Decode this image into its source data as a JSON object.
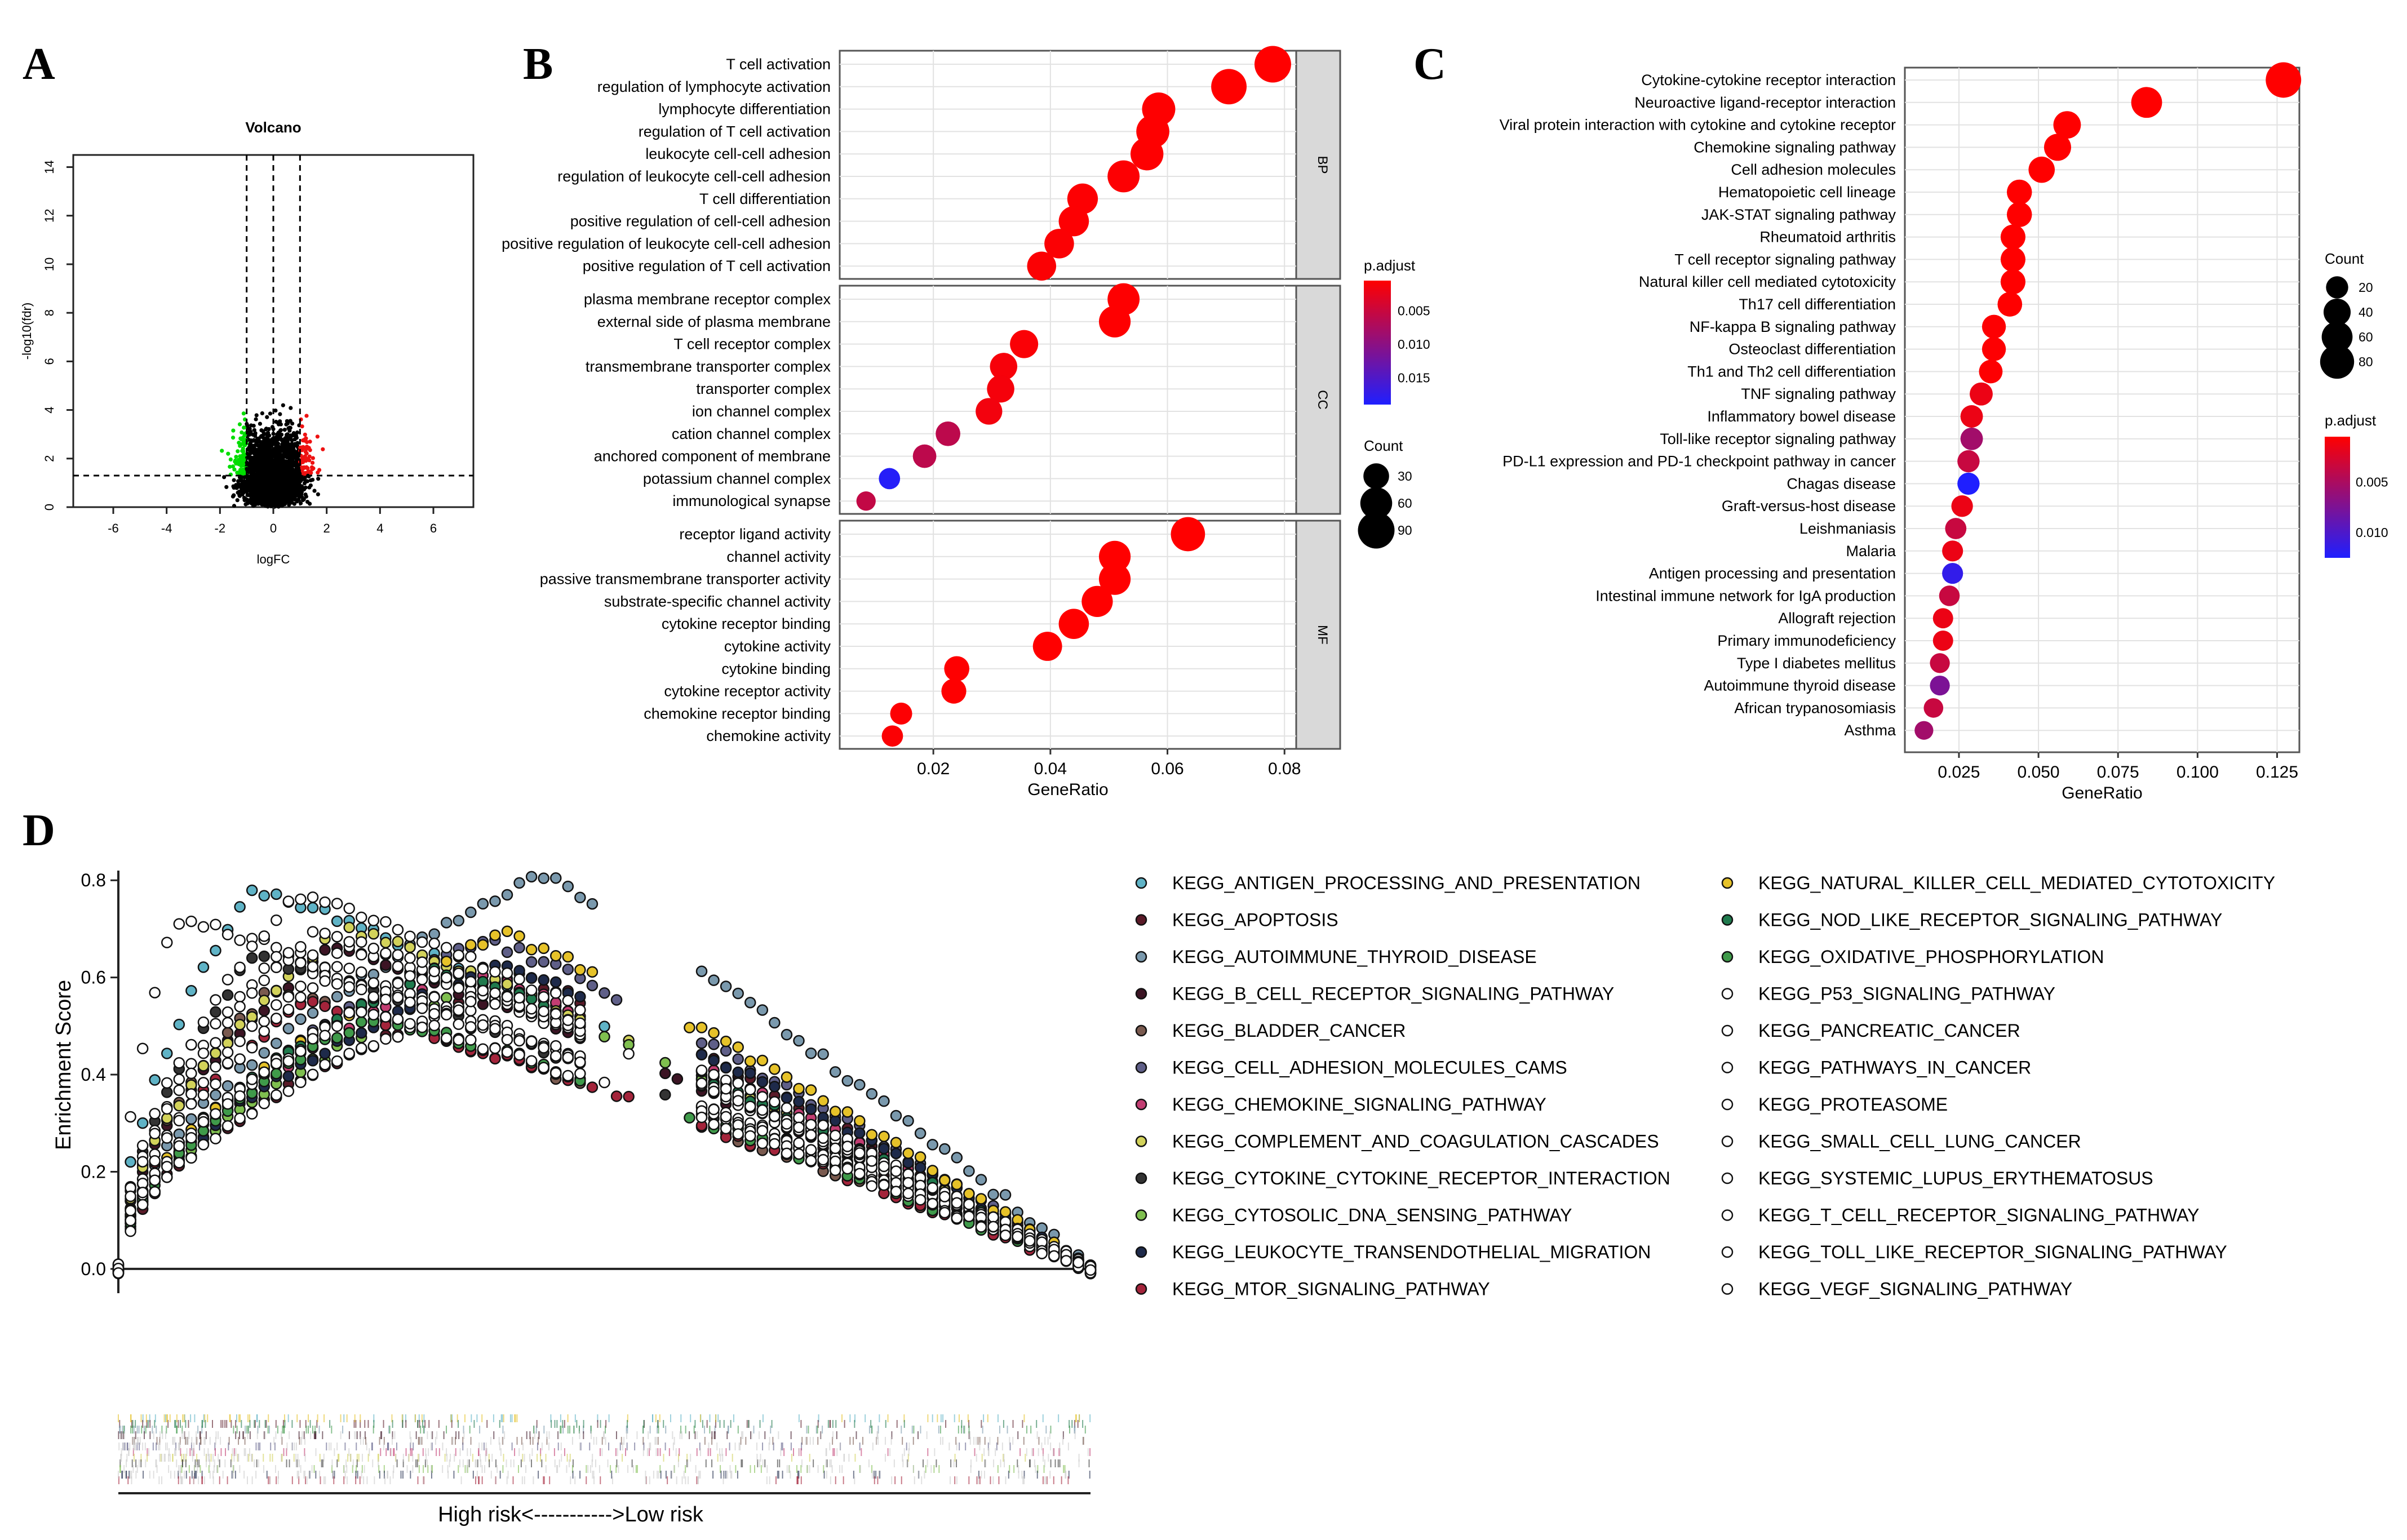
{
  "panel_letters": [
    "A",
    "B",
    "C",
    "D"
  ],
  "colors": {
    "volcano_down": "#00dd00",
    "volcano_up": "#ee1111",
    "volcano_ns": "#000000",
    "padj_low": "#ff0000",
    "padj_high": "#1f1fff",
    "panel_bg": "#ebebeb",
    "strip_bg": "#d9d9d9"
  },
  "chart_data": [
    {
      "panel": "A",
      "type": "scatter",
      "title": "Volcano",
      "xlabel": "logFC",
      "ylabel": "-log10(fdr)",
      "xlim": [
        -7.5,
        7.5
      ],
      "ylim": [
        0,
        14.5
      ],
      "xticks": [
        -6,
        -4,
        -2,
        0,
        2,
        4,
        6
      ],
      "yticks": [
        0,
        2,
        4,
        6,
        8,
        10,
        12,
        14
      ],
      "groups": [
        "down",
        "not significant",
        "up"
      ],
      "thresholds": {
        "logFC": 1,
        "fdr": 0.05
      }
    },
    {
      "panel": "B",
      "type": "scatter",
      "xlabel": "GeneRatio",
      "xlim": [
        0.004,
        0.082
      ],
      "xticks": [
        0.02,
        0.04,
        0.06,
        0.08
      ],
      "xtick_labels": [
        "0.02",
        "0.04",
        "0.06",
        "0.08"
      ],
      "color_legend": {
        "title": "p.adjust",
        "ticks": [
          "0.005",
          "0.010",
          "0.015"
        ],
        "range": [
          0.0005,
          0.019
        ]
      },
      "size_legend": {
        "title": "Count",
        "values": [
          30,
          60,
          90
        ]
      },
      "facets": [
        {
          "strip": "BP",
          "terms": [
            {
              "term": "T cell activation",
              "ratio": 0.078,
              "count": 90,
              "padj": 0.0005
            },
            {
              "term": "regulation of lymphocyte activation",
              "ratio": 0.0705,
              "count": 82,
              "padj": 0.0005
            },
            {
              "term": "lymphocyte differentiation",
              "ratio": 0.0585,
              "count": 68,
              "padj": 0.0006
            },
            {
              "term": "regulation of T cell activation",
              "ratio": 0.0575,
              "count": 67,
              "padj": 0.0006
            },
            {
              "term": "leukocyte cell-cell adhesion",
              "ratio": 0.0565,
              "count": 66,
              "padj": 0.0006
            },
            {
              "term": "regulation of leukocyte cell-cell adhesion",
              "ratio": 0.0525,
              "count": 61,
              "padj": 0.0007
            },
            {
              "term": "T cell differentiation",
              "ratio": 0.0455,
              "count": 53,
              "padj": 0.0007
            },
            {
              "term": "positive regulation of cell-cell adhesion",
              "ratio": 0.044,
              "count": 51,
              "padj": 0.0007
            },
            {
              "term": "positive regulation of leukocyte cell-cell adhesion",
              "ratio": 0.0415,
              "count": 48,
              "padj": 0.0008
            },
            {
              "term": "positive regulation of T cell activation",
              "ratio": 0.0385,
              "count": 45,
              "padj": 0.0008
            }
          ]
        },
        {
          "strip": "CC",
          "terms": [
            {
              "term": "plasma membrane receptor complex",
              "ratio": 0.0525,
              "count": 61,
              "padj": 0.0006
            },
            {
              "term": "external side of plasma membrane",
              "ratio": 0.051,
              "count": 59,
              "padj": 0.0006
            },
            {
              "term": "T cell receptor complex",
              "ratio": 0.0355,
              "count": 41,
              "padj": 0.0009
            },
            {
              "term": "transmembrane transporter complex",
              "ratio": 0.032,
              "count": 37,
              "padj": 0.0012
            },
            {
              "term": "transporter complex",
              "ratio": 0.0315,
              "count": 37,
              "padj": 0.0013
            },
            {
              "term": "ion channel complex",
              "ratio": 0.0295,
              "count": 34,
              "padj": 0.0015
            },
            {
              "term": "cation channel complex",
              "ratio": 0.0225,
              "count": 26,
              "padj": 0.006
            },
            {
              "term": "anchored component of membrane",
              "ratio": 0.0185,
              "count": 22,
              "padj": 0.006
            },
            {
              "term": "potassium channel complex",
              "ratio": 0.0125,
              "count": 15,
              "padj": 0.0185
            },
            {
              "term": "immunological synapse",
              "ratio": 0.0085,
              "count": 10,
              "padj": 0.0055
            }
          ]
        },
        {
          "strip": "MF",
          "terms": [
            {
              "term": "receptor ligand activity",
              "ratio": 0.0635,
              "count": 74,
              "padj": 0.0005
            },
            {
              "term": "channel activity",
              "ratio": 0.051,
              "count": 59,
              "padj": 0.0005
            },
            {
              "term": "passive transmembrane transporter activity",
              "ratio": 0.051,
              "count": 59,
              "padj": 0.0005
            },
            {
              "term": "substrate-specific channel activity",
              "ratio": 0.048,
              "count": 56,
              "padj": 0.0005
            },
            {
              "term": "cytokine receptor binding",
              "ratio": 0.044,
              "count": 51,
              "padj": 0.0005
            },
            {
              "term": "cytokine activity",
              "ratio": 0.0395,
              "count": 46,
              "padj": 0.0005
            },
            {
              "term": "cytokine binding",
              "ratio": 0.024,
              "count": 28,
              "padj": 0.0006
            },
            {
              "term": "cytokine receptor activity",
              "ratio": 0.0235,
              "count": 27,
              "padj": 0.0006
            },
            {
              "term": "chemokine receptor binding",
              "ratio": 0.0145,
              "count": 17,
              "padj": 0.0007
            },
            {
              "term": "chemokine activity",
              "ratio": 0.013,
              "count": 15,
              "padj": 0.0008
            }
          ]
        }
      ]
    },
    {
      "panel": "C",
      "type": "scatter",
      "xlabel": "GeneRatio",
      "xlim": [
        0.008,
        0.132
      ],
      "xticks": [
        0.025,
        0.05,
        0.075,
        0.1,
        0.125
      ],
      "xtick_labels": [
        "0.025",
        "0.050",
        "0.075",
        "0.100",
        "0.125"
      ],
      "color_legend": {
        "title": "p.adjust",
        "ticks": [
          "0.005",
          "0.010"
        ],
        "range": [
          0.0005,
          0.0125
        ]
      },
      "size_legend": {
        "title": "Count",
        "values": [
          20,
          40,
          60,
          80
        ]
      },
      "terms": [
        {
          "term": "Cytokine-cytokine receptor interaction",
          "ratio": 0.127,
          "count": 90,
          "padj": 0.0005
        },
        {
          "term": "Neuroactive ligand-receptor interaction",
          "ratio": 0.084,
          "count": 60,
          "padj": 0.0005
        },
        {
          "term": "Viral protein interaction with cytokine and cytokine receptor",
          "ratio": 0.059,
          "count": 42,
          "padj": 0.0005
        },
        {
          "term": "Chemokine signaling pathway",
          "ratio": 0.056,
          "count": 40,
          "padj": 0.0005
        },
        {
          "term": "Cell adhesion molecules",
          "ratio": 0.051,
          "count": 36,
          "padj": 0.0005
        },
        {
          "term": "Hematopoietic cell lineage",
          "ratio": 0.044,
          "count": 31,
          "padj": 0.0005
        },
        {
          "term": "JAK-STAT signaling pathway",
          "ratio": 0.044,
          "count": 31,
          "padj": 0.0005
        },
        {
          "term": "Rheumatoid arthritis",
          "ratio": 0.042,
          "count": 30,
          "padj": 0.0005
        },
        {
          "term": "T cell receptor signaling pathway",
          "ratio": 0.042,
          "count": 30,
          "padj": 0.0005
        },
        {
          "term": "Natural killer cell mediated cytotoxicity",
          "ratio": 0.042,
          "count": 30,
          "padj": 0.0005
        },
        {
          "term": "Th17 cell differentiation",
          "ratio": 0.041,
          "count": 29,
          "padj": 0.0005
        },
        {
          "term": "NF-kappa B signaling pathway",
          "ratio": 0.036,
          "count": 26,
          "padj": 0.0006
        },
        {
          "term": "Osteoclast differentiation",
          "ratio": 0.036,
          "count": 26,
          "padj": 0.0006
        },
        {
          "term": "Th1 and Th2 cell differentiation",
          "ratio": 0.035,
          "count": 25,
          "padj": 0.0006
        },
        {
          "term": "TNF signaling pathway",
          "ratio": 0.032,
          "count": 23,
          "padj": 0.0015
        },
        {
          "term": "Inflammatory bowel disease",
          "ratio": 0.029,
          "count": 21,
          "padj": 0.0015
        },
        {
          "term": "Toll-like receptor signaling pathway",
          "ratio": 0.029,
          "count": 21,
          "padj": 0.0055
        },
        {
          "term": "PD-L1 expression and PD-1 checkpoint pathway in cancer",
          "ratio": 0.028,
          "count": 20,
          "padj": 0.0035
        },
        {
          "term": "Chagas disease",
          "ratio": 0.028,
          "count": 20,
          "padj": 0.0125
        },
        {
          "term": "Graft-versus-host disease",
          "ratio": 0.026,
          "count": 18,
          "padj": 0.0015
        },
        {
          "term": "Leishmaniasis",
          "ratio": 0.024,
          "count": 17,
          "padj": 0.0035
        },
        {
          "term": "Malaria",
          "ratio": 0.023,
          "count": 16,
          "padj": 0.0015
        },
        {
          "term": "Antigen processing and presentation",
          "ratio": 0.023,
          "count": 16,
          "padj": 0.0115
        },
        {
          "term": "Intestinal immune network for IgA production",
          "ratio": 0.022,
          "count": 15,
          "padj": 0.0035
        },
        {
          "term": "Allograft rejection",
          "ratio": 0.02,
          "count": 14,
          "padj": 0.0015
        },
        {
          "term": "Primary immunodeficiency",
          "ratio": 0.02,
          "count": 14,
          "padj": 0.0015
        },
        {
          "term": "Type I diabetes mellitus",
          "ratio": 0.019,
          "count": 13,
          "padj": 0.0035
        },
        {
          "term": "Autoimmune thyroid disease",
          "ratio": 0.019,
          "count": 13,
          "padj": 0.0075
        },
        {
          "term": "African trypanosomiasis",
          "ratio": 0.017,
          "count": 12,
          "padj": 0.0035
        },
        {
          "term": "Asthma",
          "ratio": 0.014,
          "count": 10,
          "padj": 0.0055
        }
      ]
    },
    {
      "panel": "D",
      "type": "line",
      "ylabel": "Enrichment Score",
      "xlabel": "High risk<----------->Low risk",
      "ylim": [
        -0.05,
        0.82
      ],
      "yticks": [
        0.0,
        0.2,
        0.4,
        0.6,
        0.8
      ],
      "ytick_labels": [
        "0.0",
        "0.2",
        "0.4",
        "0.6",
        "0.8"
      ],
      "series": [
        {
          "name": "KEGG_ANTIGEN_PROCESSING_AND_PRESENTATION",
          "color": "#5fb3c6",
          "peak": 0.78
        },
        {
          "name": "KEGG_APOPTOSIS",
          "color": "#5a1a28",
          "peak": 0.6
        },
        {
          "name": "KEGG_AUTOIMMUNE_THYROID_DISEASE",
          "color": "#7a99ad",
          "peak": 0.81
        },
        {
          "name": "KEGG_B_CELL_RECEPTOR_SIGNALING_PATHWAY",
          "color": "#3c1424",
          "peak": 0.66
        },
        {
          "name": "KEGG_BLADDER_CANCER",
          "color": "#7a5a4f",
          "peak": 0.57
        },
        {
          "name": "KEGG_CELL_ADHESION_MOLECULES_CAMS",
          "color": "#5f5f88",
          "peak": 0.68
        },
        {
          "name": "KEGG_CHEMOKINE_SIGNALING_PATHWAY",
          "color": "#c23d72",
          "peak": 0.62
        },
        {
          "name": "KEGG_COMPLEMENT_AND_COAGULATION_CASCADES",
          "color": "#d2d25a",
          "peak": 0.7
        },
        {
          "name": "KEGG_CYTOKINE_CYTOKINE_RECEPTOR_INTERACTION",
          "color": "#333333",
          "peak": 0.64
        },
        {
          "name": "KEGG_CYTOSOLIC_DNA_SENSING_PATHWAY",
          "color": "#7fbf4f",
          "peak": 0.58
        },
        {
          "name": "KEGG_LEUKOCYTE_TRANSENDOTHELIAL_MIGRATION",
          "color": "#1e2a4a",
          "peak": 0.63
        },
        {
          "name": "KEGG_MTOR_SIGNALING_PATHWAY",
          "color": "#a4243b",
          "peak": 0.55
        },
        {
          "name": "KEGG_NATURAL_KILLER_CELL_MEDIATED_CYTOTOXICITY",
          "color": "#e6c229",
          "peak": 0.69
        },
        {
          "name": "KEGG_NOD_LIKE_RECEPTOR_SIGNALING_PATHWAY",
          "color": "#1f7a4d",
          "peak": 0.62
        },
        {
          "name": "KEGG_OXIDATIVE_PHOSPHORYLATION",
          "color": "#3f9a4a",
          "peak": 0.52
        },
        {
          "name": "KEGG_P53_SIGNALING_PATHWAY",
          "color": "#ffffff",
          "peak": 0.72
        },
        {
          "name": "KEGG_PANCREATIC_CANCER",
          "color": "#ffffff",
          "peak": 0.66
        },
        {
          "name": "KEGG_PATHWAYS_IN_CANCER",
          "color": "#ffffff",
          "peak": 0.6
        },
        {
          "name": "KEGG_PROTEASOME",
          "color": "#ffffff",
          "peak": 0.56
        },
        {
          "name": "KEGG_SMALL_CELL_LUNG_CANCER",
          "color": "#ffffff",
          "peak": 0.64
        },
        {
          "name": "KEGG_SYSTEMIC_LUPUS_ERYTHEMATOSUS",
          "color": "#ffffff",
          "peak": 0.77
        },
        {
          "name": "KEGG_T_CELL_RECEPTOR_SIGNALING_PATHWAY",
          "color": "#ffffff",
          "peak": 0.7
        },
        {
          "name": "KEGG_TOLL_LIKE_RECEPTOR_SIGNALING_PATHWAY",
          "color": "#ffffff",
          "peak": 0.59
        },
        {
          "name": "KEGG_VEGF_SIGNALING_PATHWAY",
          "color": "#ffffff",
          "peak": 0.53
        }
      ]
    }
  ]
}
